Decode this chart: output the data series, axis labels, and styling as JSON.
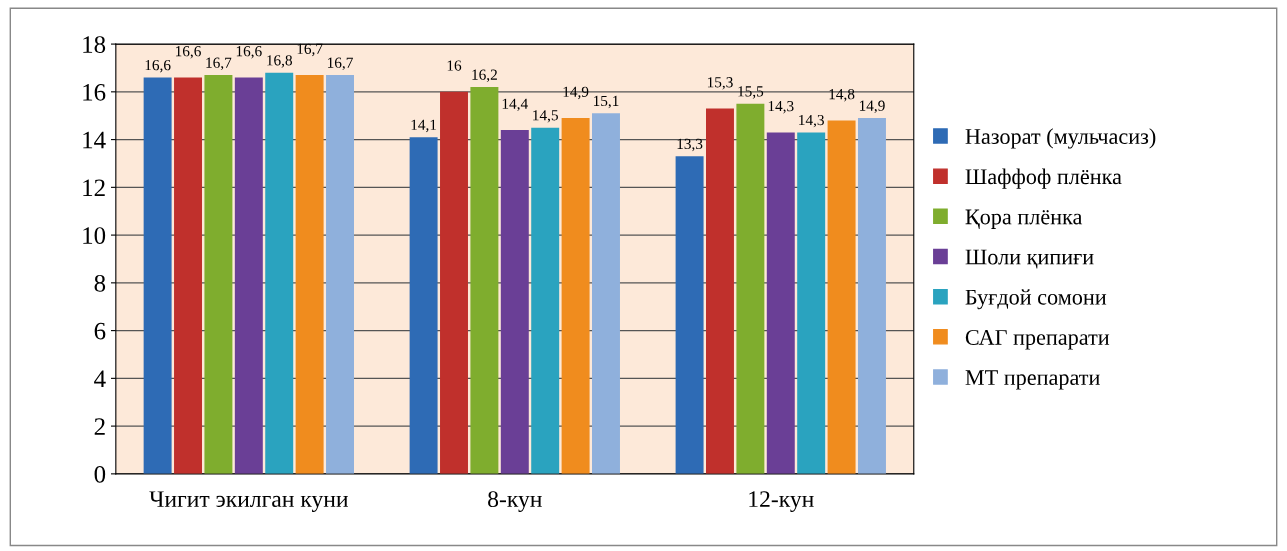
{
  "chart_data": {
    "type": "bar",
    "categories": [
      "Чигит экилган куни",
      "8-кун",
      "12-кун"
    ],
    "series": [
      {
        "name": "Назорат (мульчасиз)",
        "color": "#2e6bb5",
        "values": [
          16.6,
          14.1,
          13.3
        ],
        "value_labels": [
          "16,6",
          "14,1",
          "13,3"
        ]
      },
      {
        "name": "Шаффоф плёнка",
        "color": "#c0302c",
        "values": [
          16.6,
          16,
          15.3
        ],
        "value_labels": [
          "16,6",
          "16",
          "15,3"
        ]
      },
      {
        "name": "Қора плёнка",
        "color": "#7fad2e",
        "values": [
          16.7,
          16.2,
          15.5
        ],
        "value_labels": [
          "16,7",
          "16,2",
          "15,5"
        ]
      },
      {
        "name": "Шоли қипиғи",
        "color": "#6a3f96",
        "values": [
          16.6,
          14.4,
          14.3
        ],
        "value_labels": [
          "16,6",
          "14,4",
          "14,3"
        ]
      },
      {
        "name": "Буғдой сомони",
        "color": "#2aa3bf",
        "values": [
          16.8,
          14.5,
          14.3
        ],
        "value_labels": [
          "16,8",
          "14,5",
          "14,3"
        ]
      },
      {
        "name": "САГ препарати",
        "color": "#f08c1e",
        "values": [
          16.7,
          14.9,
          14.8
        ],
        "value_labels": [
          "16,7",
          "14,9",
          "14,8"
        ]
      },
      {
        "name": "МТ препарати",
        "color": "#8fb0dc",
        "values": [
          16.7,
          15.1,
          14.9
        ],
        "value_labels": [
          "16,7",
          "15,1",
          "14,9"
        ]
      }
    ],
    "ylim": [
      0,
      18
    ],
    "yticks": [
      0,
      2,
      4,
      6,
      8,
      10,
      12,
      14,
      16,
      18
    ],
    "grid": "y",
    "legend": "right"
  }
}
